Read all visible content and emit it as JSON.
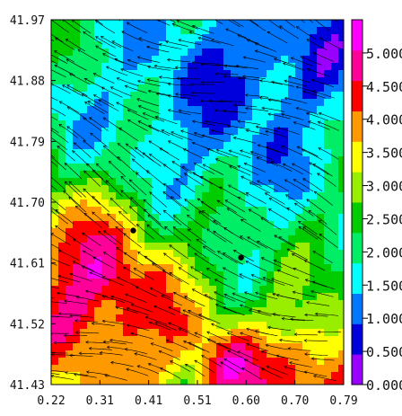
{
  "chart_data": {
    "type": "heatmap",
    "title": "",
    "xlabel": "",
    "ylabel": "",
    "x_ticks": [
      "0.22",
      "0.31",
      "0.41",
      "0.51",
      "0.60",
      "0.70",
      "0.79"
    ],
    "y_ticks": [
      "41.97",
      "41.88",
      "41.79",
      "41.70",
      "41.61",
      "41.52",
      "41.43"
    ],
    "xlim": [
      0.22,
      0.79
    ],
    "ylim": [
      41.43,
      41.97
    ],
    "colorbar": {
      "ticks": [
        "5.000",
        "4.500",
        "4.000",
        "3.500",
        "3.000",
        "2.500",
        "2.000",
        "1.500",
        "1.000",
        "0.500",
        "0.000"
      ],
      "range": [
        0.0,
        5.5
      ],
      "colors": [
        "#9900ff",
        "#0000dd",
        "#0077ff",
        "#00ffff",
        "#00ee66",
        "#00cc00",
        "#99ee00",
        "#ffff00",
        "#ff9900",
        "#ff0000",
        "#ff0099",
        "#ff00ff"
      ]
    },
    "overlay": "streamlines",
    "points": [
      {
        "x": 0.38,
        "y": 41.658
      },
      {
        "x": 0.59,
        "y": 41.618
      }
    ],
    "grid": false,
    "legend": "none"
  }
}
